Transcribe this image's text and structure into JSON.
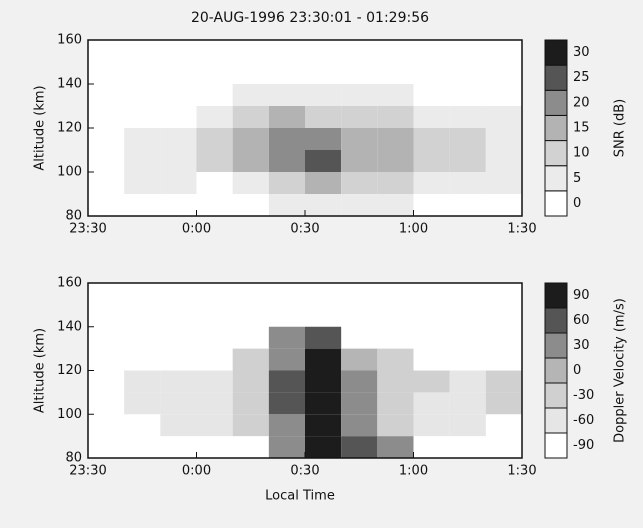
{
  "chart_data": [
    {
      "type": "heatmap",
      "title": "20-AUG-1996    23:30:01  -  01:29:56",
      "ylabel": "Altitude (km)",
      "x": [
        5,
        15,
        25,
        35,
        45,
        55,
        65,
        75,
        85,
        95,
        105,
        115
      ],
      "y": [
        85,
        95,
        105,
        115,
        125,
        135,
        145,
        155
      ],
      "z": [
        [
          null,
          null,
          null,
          null,
          null,
          5,
          8,
          5,
          5,
          null,
          null,
          null
        ],
        [
          null,
          5,
          5,
          null,
          8,
          12,
          18,
          12,
          10,
          8,
          5,
          5
        ],
        [
          null,
          8,
          8,
          10,
          15,
          22,
          25,
          18,
          15,
          12,
          10,
          8
        ],
        [
          null,
          8,
          5,
          10,
          15,
          22,
          20,
          18,
          15,
          12,
          10,
          8
        ],
        [
          null,
          null,
          null,
          5,
          10,
          15,
          12,
          12,
          10,
          8,
          5,
          5
        ],
        [
          null,
          null,
          null,
          null,
          5,
          5,
          5,
          5,
          5,
          null,
          null,
          null
        ],
        [
          null,
          null,
          null,
          null,
          null,
          null,
          null,
          null,
          null,
          null,
          null,
          null
        ],
        [
          null,
          null,
          null,
          null,
          null,
          null,
          null,
          null,
          null,
          null,
          null,
          null
        ]
      ],
      "xlim": [
        0,
        120
      ],
      "xticks": [
        {
          "value": 0,
          "label": "23:30"
        },
        {
          "value": 30,
          "label": "0:00"
        },
        {
          "value": 60,
          "label": "0:30"
        },
        {
          "value": 90,
          "label": "1:00"
        },
        {
          "value": 120,
          "label": "1:30"
        }
      ],
      "ylim": [
        80,
        160
      ],
      "yticks": [
        80,
        100,
        120,
        140,
        160
      ],
      "colorbar": {
        "label": "SNR (dB)",
        "ticks": [
          0,
          5,
          10,
          15,
          20,
          25,
          30
        ],
        "colors": [
          "#ffffff",
          "#ebebeb",
          "#d2d2d2",
          "#b3b3b3",
          "#8c8c8c",
          "#555555",
          "#1c1c1c"
        ]
      }
    },
    {
      "type": "heatmap",
      "ylabel": "Altitude (km)",
      "xlabel": "Local Time",
      "x": [
        5,
        15,
        25,
        35,
        45,
        55,
        65,
        75,
        85,
        95,
        105,
        115
      ],
      "y": [
        85,
        95,
        105,
        115,
        125,
        135,
        145,
        155
      ],
      "z": [
        [
          null,
          null,
          null,
          null,
          null,
          30,
          90,
          60,
          30,
          null,
          null,
          null
        ],
        [
          null,
          null,
          -60,
          -60,
          -30,
          30,
          90,
          30,
          -30,
          -60,
          -60,
          null
        ],
        [
          null,
          -60,
          -60,
          -60,
          -30,
          60,
          90,
          30,
          -30,
          -60,
          -60,
          -30
        ],
        [
          null,
          -60,
          -60,
          -60,
          -30,
          60,
          90,
          30,
          -30,
          -30,
          -60,
          -30
        ],
        [
          null,
          null,
          null,
          null,
          -30,
          30,
          90,
          0,
          -30,
          null,
          null,
          null
        ],
        [
          null,
          null,
          null,
          null,
          null,
          30,
          60,
          null,
          null,
          null,
          null,
          null
        ],
        [
          null,
          null,
          null,
          null,
          null,
          null,
          null,
          null,
          null,
          null,
          null,
          null
        ],
        [
          null,
          null,
          null,
          null,
          null,
          null,
          null,
          null,
          null,
          null,
          null,
          null
        ]
      ],
      "xlim": [
        0,
        120
      ],
      "xticks": [
        {
          "value": 0,
          "label": "23:30"
        },
        {
          "value": 30,
          "label": "0:00"
        },
        {
          "value": 60,
          "label": "0:30"
        },
        {
          "value": 90,
          "label": "1:00"
        },
        {
          "value": 120,
          "label": "1:30"
        }
      ],
      "ylim": [
        80,
        160
      ],
      "yticks": [
        80,
        100,
        120,
        140,
        160
      ],
      "colorbar": {
        "label": "Doppler Velocity (m/s)",
        "ticks": [
          -90,
          -60,
          -30,
          0,
          30,
          60,
          90
        ],
        "colors": [
          "#ffffff",
          "#e6e6e6",
          "#d0d0d0",
          "#b5b5b5",
          "#8c8c8c",
          "#555555",
          "#1c1c1c"
        ]
      }
    }
  ]
}
